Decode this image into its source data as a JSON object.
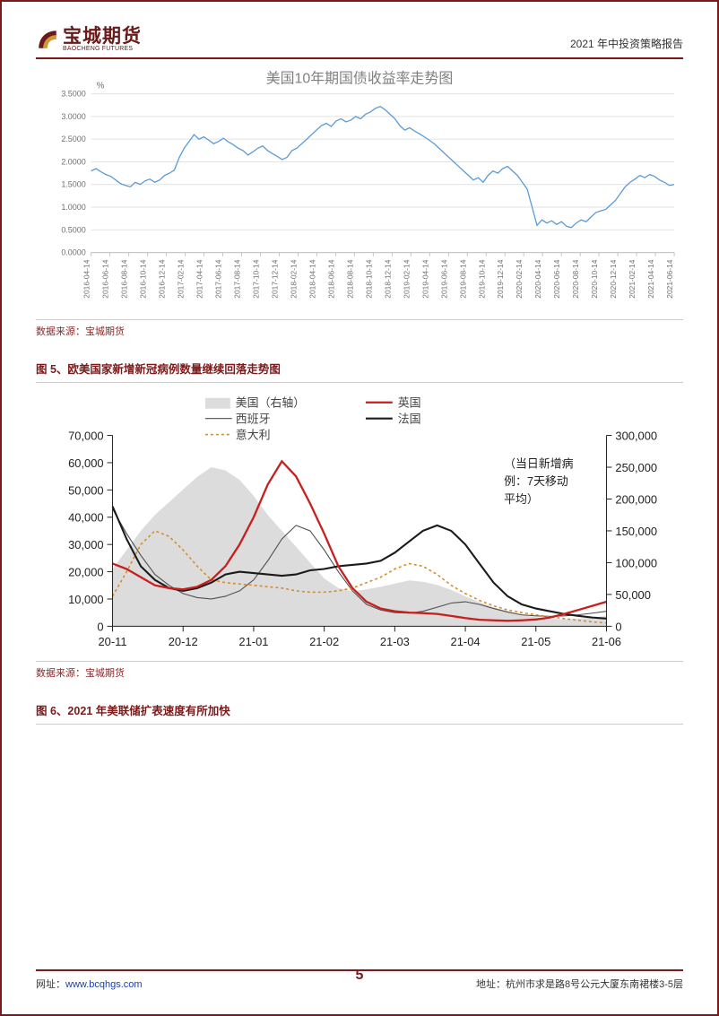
{
  "header": {
    "logo_cn": "宝城期货",
    "logo_en": "BAOCHENG FUTURES",
    "doc_title": "2021 年中投资策略报告"
  },
  "chart1": {
    "type": "line",
    "title": "美国10年期国债收益率走势图",
    "unit": "%",
    "title_color": "#808080",
    "title_fontsize": 16,
    "unit_fontsize": 10,
    "line_color": "#5b9bd5",
    "line_width": 1.3,
    "background_color": "#ffffff",
    "grid_color": "#e2e2e2",
    "axis_color": "#c0c0c0",
    "ylim": [
      0,
      3.5
    ],
    "ytick_step": 0.5,
    "y_decimals": 4,
    "x_labels": [
      "2016-04-14",
      "2016-06-14",
      "2016-08-14",
      "2016-10-14",
      "2016-12-14",
      "2017-02-14",
      "2017-04-14",
      "2017-06-14",
      "2017-08-14",
      "2017-10-14",
      "2017-12-14",
      "2018-02-14",
      "2018-04-14",
      "2018-06-14",
      "2018-08-14",
      "2018-10-14",
      "2018-12-14",
      "2019-02-14",
      "2019-04-14",
      "2019-06-14",
      "2019-08-14",
      "2019-10-14",
      "2019-12-14",
      "2020-02-14",
      "2020-04-14",
      "2020-06-14",
      "2020-08-14",
      "2020-10-14",
      "2020-12-14",
      "2021-02-14",
      "2021-04-14",
      "2021-06-14"
    ],
    "values_dense": [
      1.8,
      1.85,
      1.78,
      1.72,
      1.68,
      1.6,
      1.52,
      1.48,
      1.45,
      1.55,
      1.5,
      1.58,
      1.62,
      1.55,
      1.6,
      1.7,
      1.75,
      1.82,
      2.1,
      2.3,
      2.45,
      2.6,
      2.5,
      2.55,
      2.48,
      2.4,
      2.45,
      2.52,
      2.44,
      2.38,
      2.3,
      2.25,
      2.15,
      2.22,
      2.3,
      2.35,
      2.25,
      2.18,
      2.12,
      2.05,
      2.1,
      2.25,
      2.3,
      2.4,
      2.5,
      2.6,
      2.7,
      2.8,
      2.85,
      2.78,
      2.9,
      2.95,
      2.88,
      2.92,
      3.0,
      2.95,
      3.05,
      3.1,
      3.18,
      3.22,
      3.15,
      3.05,
      2.95,
      2.8,
      2.7,
      2.75,
      2.68,
      2.62,
      2.55,
      2.48,
      2.4,
      2.3,
      2.2,
      2.1,
      2.0,
      1.9,
      1.8,
      1.7,
      1.6,
      1.65,
      1.55,
      1.7,
      1.8,
      1.75,
      1.85,
      1.9,
      1.8,
      1.7,
      1.55,
      1.4,
      1.0,
      0.6,
      0.72,
      0.65,
      0.7,
      0.62,
      0.68,
      0.58,
      0.55,
      0.65,
      0.72,
      0.68,
      0.78,
      0.88,
      0.92,
      0.95,
      1.05,
      1.15,
      1.3,
      1.45,
      1.55,
      1.62,
      1.7,
      1.65,
      1.72,
      1.68,
      1.6,
      1.55,
      1.48,
      1.5
    ]
  },
  "source": {
    "label": "数据来源：",
    "value": "宝城期货"
  },
  "fig5_title": "图 5、欧美国家新增新冠病例数量继续回落走势图",
  "chart2": {
    "type": "multi-line-area",
    "x_labels": [
      "20-11",
      "20-12",
      "21-01",
      "21-02",
      "21-03",
      "21-04",
      "21-05",
      "21-06"
    ],
    "left_ylim": [
      0,
      70000
    ],
    "left_ytick_step": 10000,
    "right_ylim": [
      0,
      300000
    ],
    "right_ytick_step": 50000,
    "tick_fontsize": 13,
    "annotation_lines": [
      "（当日新增病",
      "例：7天移动",
      "平均）"
    ],
    "legend": {
      "usa": "美国（右轴）",
      "uk": "英国",
      "spain": "西班牙",
      "france": "法国",
      "italy": "意大利"
    },
    "colors": {
      "usa_fill": "#dcdcdc",
      "uk": "#c81e1e",
      "spain": "#505050",
      "france": "#1a1a1a",
      "italy": "#d88b2a",
      "background": "#ffffff",
      "tick": "#222222"
    },
    "usa_right": [
      90000,
      120000,
      150000,
      175000,
      195000,
      215000,
      235000,
      250000,
      245000,
      230000,
      205000,
      175000,
      150000,
      125000,
      100000,
      75000,
      60000,
      55000,
      58000,
      62000,
      67000,
      72000,
      70000,
      65000,
      57000,
      47000,
      38000,
      30000,
      24000,
      18000,
      14000,
      12000,
      11000,
      12000,
      14000,
      16000
    ],
    "uk_left": [
      23000,
      21000,
      18000,
      15000,
      14000,
      13500,
      14500,
      17000,
      22000,
      30000,
      40000,
      52000,
      60500,
      55000,
      45000,
      34000,
      22000,
      14000,
      9000,
      6500,
      5500,
      5000,
      4800,
      4500,
      3800,
      3000,
      2400,
      2200,
      2000,
      2200,
      2500,
      3200,
      4500,
      6000,
      7500,
      9000
    ],
    "spain_left": [
      43000,
      34000,
      26000,
      19000,
      15000,
      12000,
      10500,
      10000,
      11000,
      13000,
      17000,
      24000,
      32000,
      37000,
      35000,
      28000,
      20000,
      13000,
      8000,
      6000,
      5000,
      4800,
      5500,
      7000,
      8500,
      9000,
      8000,
      6500,
      5200,
      4200,
      3800,
      3600,
      3800,
      4200,
      4800,
      5500
    ],
    "france_left": [
      44000,
      32000,
      22000,
      17000,
      14000,
      13000,
      14000,
      16000,
      19000,
      20000,
      19500,
      19000,
      18500,
      19000,
      20500,
      21000,
      22000,
      22500,
      23000,
      24000,
      27000,
      31000,
      35000,
      37000,
      35000,
      30000,
      23000,
      16000,
      11000,
      8000,
      6500,
      5500,
      4500,
      3800,
      3200,
      2800
    ],
    "italy_left": [
      11000,
      20000,
      30000,
      35000,
      33000,
      28000,
      22000,
      17000,
      16000,
      15500,
      15000,
      14500,
      14000,
      13000,
      12500,
      12500,
      13000,
      14000,
      16000,
      18000,
      21000,
      23000,
      22000,
      19000,
      15000,
      12000,
      9500,
      7500,
      6000,
      5000,
      4200,
      3500,
      2800,
      2200,
      1600,
      1200
    ]
  },
  "fig6_title": "图 6、2021 年美联储扩表速度有所加快",
  "footer": {
    "web_label": "网址：",
    "web_value": "www.bcqhgs.com",
    "page": "5",
    "addr_label": "地址：",
    "addr_value": "杭州市求是路8号公元大厦东南裙楼3-5层"
  }
}
